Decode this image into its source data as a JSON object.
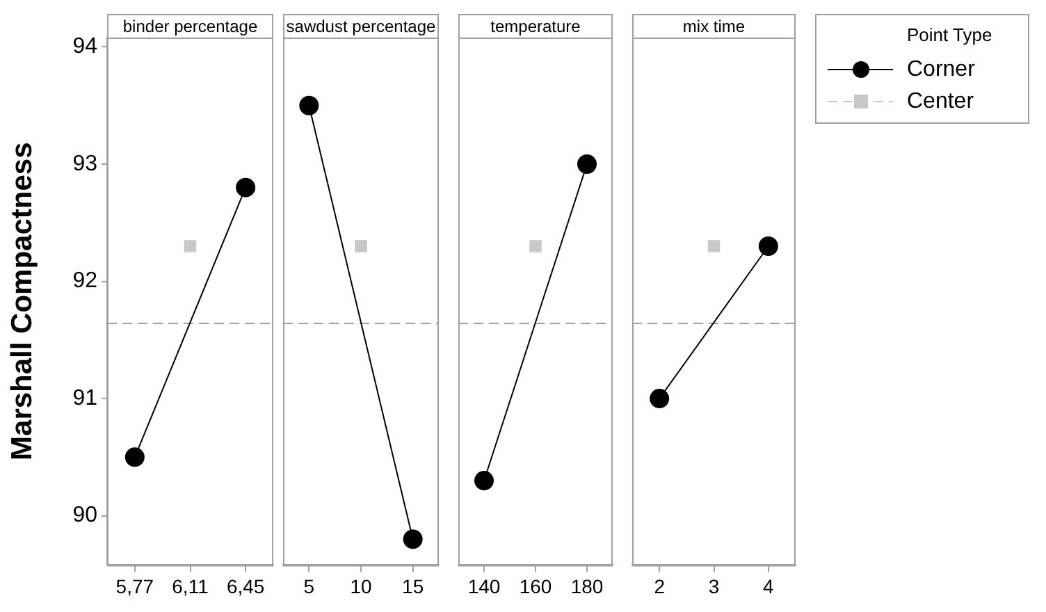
{
  "chart_data": [
    {
      "type": "line",
      "title": "binder percentage",
      "ylabel": "Marshall Compactness",
      "categories": [
        "5,77",
        "6,11",
        "6,45"
      ],
      "ylim": [
        89.58,
        94.08
      ],
      "yticks": [
        90,
        91,
        92,
        93,
        94
      ],
      "grid": false,
      "series": [
        {
          "color": "#000000",
          "marker": "circle",
          "line_style": "solid",
          "values": [
            90.5,
            null,
            92.8
          ]
        },
        {
          "color": "#c8c8c8",
          "marker": "square",
          "line_style": "dashed",
          "values": [
            null,
            92.3,
            null
          ]
        }
      ],
      "ref_lines": [
        {
          "axis": "y",
          "value": 91.65,
          "color": "#a0a0a0",
          "line_style": "dashed"
        }
      ]
    },
    {
      "type": "line",
      "title": "sawdust percentage",
      "categories": [
        "5",
        "10",
        "15"
      ],
      "ylim": [
        89.58,
        94.08
      ],
      "tick_labels": "x",
      "grid": false,
      "series": [
        {
          "color": "#000000",
          "marker": "circle",
          "line_style": "solid",
          "values": [
            93.5,
            null,
            89.8
          ]
        },
        {
          "color": "#c8c8c8",
          "marker": "square",
          "line_style": "dashed",
          "values": [
            null,
            92.3,
            null
          ]
        }
      ],
      "ref_lines": [
        {
          "axis": "y",
          "value": 91.65,
          "color": "#a0a0a0",
          "line_style": "dashed"
        }
      ]
    },
    {
      "type": "line",
      "title": "temperature",
      "categories": [
        "140",
        "160",
        "180"
      ],
      "ylim": [
        89.58,
        94.08
      ],
      "tick_labels": "x",
      "grid": false,
      "series": [
        {
          "color": "#000000",
          "marker": "circle",
          "line_style": "solid",
          "values": [
            90.3,
            null,
            93.0
          ]
        },
        {
          "color": "#c8c8c8",
          "marker": "square",
          "line_style": "dashed",
          "values": [
            null,
            92.3,
            null
          ]
        }
      ],
      "ref_lines": [
        {
          "axis": "y",
          "value": 91.65,
          "color": "#a0a0a0",
          "line_style": "dashed"
        }
      ]
    },
    {
      "type": "line",
      "title": "mix time",
      "categories": [
        "2",
        "3",
        "4"
      ],
      "ylim": [
        89.58,
        94.08
      ],
      "tick_labels": "x",
      "grid": false,
      "legend": "top right",
      "legend_title": "Point Type",
      "series": [
        {
          "name": "Corner",
          "color": "#000000",
          "marker": "circle",
          "line_style": "solid",
          "values": [
            91.0,
            null,
            92.3
          ]
        },
        {
          "name": "Center",
          "color": "#c8c8c8",
          "marker": "square",
          "line_style": "dashed",
          "values": [
            null,
            92.3,
            null
          ]
        }
      ],
      "ref_lines": [
        {
          "axis": "y",
          "value": 91.65,
          "color": "#a0a0a0",
          "line_style": "dashed"
        }
      ]
    }
  ]
}
